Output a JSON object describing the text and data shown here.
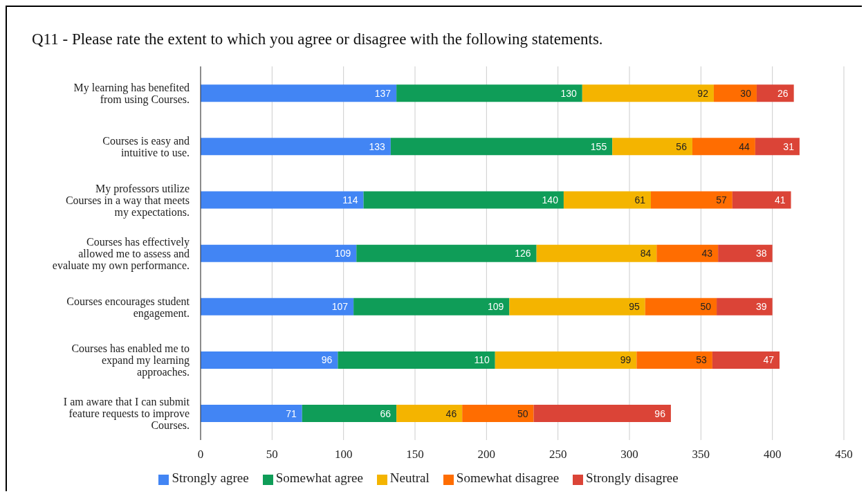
{
  "chart_data": {
    "type": "bar",
    "orientation": "horizontal",
    "stacked": true,
    "title": "Q11 - Please rate the extent to which you agree or disagree with the following statements.",
    "categories": [
      "My learning has benefited from using Courses.",
      "Courses is easy and intuitive to use.",
      "My professors utilize Courses in a way that meets my expectations.",
      "Courses has effectively allowed me to assess and evaluate my own performance.",
      "Courses encourages student engagement.",
      "Courses has enabled me to expand my learning approaches.",
      "I am aware that I can submit feature requests to improve Courses."
    ],
    "series": [
      {
        "name": "Strongly agree",
        "color": "#4285f4",
        "values": [
          137,
          133,
          114,
          109,
          107,
          96,
          71
        ]
      },
      {
        "name": "Somewhat agree",
        "color": "#0f9d58",
        "values": [
          130,
          155,
          140,
          126,
          109,
          110,
          66
        ]
      },
      {
        "name": "Neutral",
        "color": "#f4b400",
        "values": [
          92,
          56,
          61,
          84,
          95,
          99,
          46
        ]
      },
      {
        "name": "Somewhat disagree",
        "color": "#ff6d01",
        "values": [
          30,
          44,
          57,
          43,
          50,
          53,
          50
        ]
      },
      {
        "name": "Strongly disagree",
        "color": "#db4437",
        "values": [
          26,
          31,
          41,
          38,
          39,
          47,
          96
        ]
      }
    ],
    "xlim": [
      0,
      450
    ],
    "xticks": [
      0,
      50,
      100,
      150,
      200,
      250,
      300,
      350,
      400,
      450
    ],
    "grid": "x",
    "legend": "bottom",
    "data_labels": true
  }
}
